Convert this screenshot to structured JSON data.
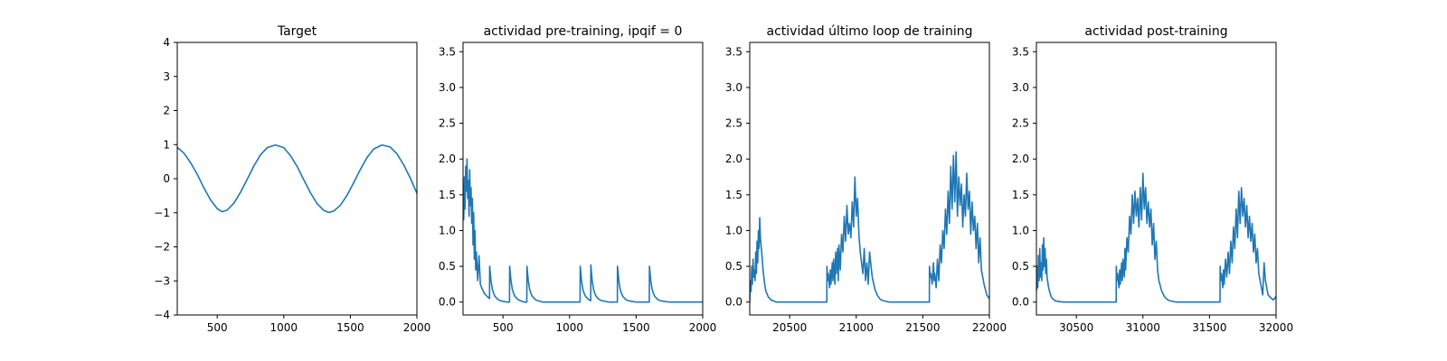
{
  "chart_data": [
    {
      "type": "line",
      "title": "Target",
      "xlim": [
        200,
        2000
      ],
      "ylim": [
        -4,
        4
      ],
      "xticks": [
        500,
        1000,
        1500,
        2000
      ],
      "yticks": [
        -4,
        -3,
        -2,
        -1,
        0,
        1,
        2,
        3,
        4
      ],
      "grid": false,
      "series": [
        {
          "color": "#1f77b4",
          "x": [
            200,
            250,
            300,
            350,
            400,
            450,
            500,
            537,
            575,
            625,
            675,
            725,
            775,
            825,
            875,
            937,
            1000,
            1050,
            1100,
            1150,
            1200,
            1250,
            1300,
            1337,
            1375,
            1425,
            1475,
            1525,
            1575,
            1625,
            1675,
            1737,
            1800,
            1850,
            1900,
            1950,
            2000
          ],
          "y": [
            0.92,
            0.75,
            0.47,
            0.13,
            -0.27,
            -0.62,
            -0.88,
            -0.97,
            -0.92,
            -0.72,
            -0.4,
            -0.02,
            0.37,
            0.7,
            0.91,
            0.99,
            0.91,
            0.68,
            0.36,
            -0.03,
            -0.41,
            -0.73,
            -0.93,
            -0.99,
            -0.95,
            -0.78,
            -0.49,
            -0.12,
            0.27,
            0.62,
            0.87,
            0.99,
            0.93,
            0.73,
            0.41,
            0.02,
            -0.43
          ]
        }
      ]
    },
    {
      "type": "line",
      "title": "actividad pre-training, ipqif = 0",
      "xlim": [
        200,
        2000
      ],
      "ylim": [
        -0.18,
        3.63
      ],
      "xticks": [
        500,
        1000,
        1500,
        2000
      ],
      "yticks": [
        0.0,
        0.5,
        1.0,
        1.5,
        2.0,
        2.5,
        3.0,
        3.5
      ],
      "grid": false,
      "series": [
        {
          "color": "#1f77b4",
          "x": [
            200,
            205,
            210,
            215,
            220,
            225,
            230,
            235,
            240,
            245,
            250,
            255,
            260,
            265,
            270,
            275,
            280,
            285,
            290,
            295,
            300,
            310,
            320,
            330,
            340,
            360,
            380,
            399,
            400,
            405,
            410,
            420,
            430,
            440,
            460,
            480,
            500,
            530,
            549,
            550,
            555,
            560,
            570,
            580,
            590,
            610,
            630,
            660,
            679,
            680,
            685,
            690,
            700,
            710,
            720,
            740,
            760,
            800,
            900,
            1000,
            1079,
            1080,
            1085,
            1090,
            1100,
            1110,
            1120,
            1140,
            1159,
            1160,
            1165,
            1170,
            1180,
            1190,
            1200,
            1220,
            1240,
            1300,
            1359,
            1360,
            1365,
            1370,
            1380,
            1390,
            1400,
            1420,
            1440,
            1500,
            1599,
            1600,
            1605,
            1610,
            1620,
            1630,
            1640,
            1660,
            1680,
            1750,
            1850,
            1950,
            2000
          ],
          "y": [
            1.4,
            1.15,
            1.75,
            1.3,
            1.9,
            1.55,
            2.0,
            1.45,
            1.7,
            1.2,
            1.85,
            1.35,
            1.6,
            1.1,
            1.45,
            0.8,
            1.25,
            0.6,
            1.0,
            0.45,
            0.7,
            0.3,
            0.65,
            0.25,
            0.2,
            0.12,
            0.08,
            0.05,
            0.5,
            0.4,
            0.3,
            0.18,
            0.12,
            0.08,
            0.04,
            0.02,
            0.01,
            0.0,
            0.0,
            0.5,
            0.4,
            0.3,
            0.18,
            0.12,
            0.08,
            0.04,
            0.02,
            0.0,
            0.0,
            0.5,
            0.4,
            0.3,
            0.18,
            0.12,
            0.08,
            0.04,
            0.02,
            0.0,
            0.0,
            0.0,
            0.0,
            0.5,
            0.4,
            0.3,
            0.18,
            0.12,
            0.08,
            0.04,
            0.02,
            0.52,
            0.4,
            0.3,
            0.18,
            0.12,
            0.08,
            0.04,
            0.02,
            0.0,
            0.0,
            0.5,
            0.4,
            0.3,
            0.18,
            0.12,
            0.08,
            0.04,
            0.02,
            0.0,
            0.0,
            0.5,
            0.4,
            0.3,
            0.18,
            0.12,
            0.08,
            0.04,
            0.02,
            0.0,
            0.0,
            0.0,
            0.0
          ]
        }
      ]
    },
    {
      "type": "line",
      "title": "actividad último loop de training",
      "xlim": [
        20200,
        22000
      ],
      "ylim": [
        -0.18,
        3.63
      ],
      "xticks": [
        20500,
        21000,
        21500,
        22000
      ],
      "yticks": [
        0.0,
        0.5,
        1.0,
        1.5,
        2.0,
        2.5,
        3.0,
        3.5
      ],
      "grid": false,
      "series": [
        {
          "color": "#1f77b4",
          "x": [
            20200,
            20205,
            20210,
            20215,
            20220,
            20225,
            20230,
            20235,
            20240,
            20245,
            20250,
            20255,
            20260,
            20265,
            20270,
            20275,
            20280,
            20290,
            20300,
            20310,
            20320,
            20340,
            20360,
            20400,
            20500,
            20600,
            20700,
            20779,
            20780,
            20785,
            20790,
            20800,
            20805,
            20810,
            20820,
            20825,
            20830,
            20840,
            20845,
            20850,
            20860,
            20865,
            20870,
            20880,
            20890,
            20900,
            20910,
            20920,
            20930,
            20940,
            20950,
            20960,
            20970,
            20980,
            20990,
            21000,
            21010,
            21020,
            21030,
            21040,
            21050,
            21060,
            21070,
            21080,
            21090,
            21100,
            21120,
            21140,
            21160,
            21180,
            21200,
            21250,
            21300,
            21400,
            21500,
            21549,
            21550,
            21555,
            21560,
            21570,
            21580,
            21585,
            21590,
            21600,
            21610,
            21620,
            21630,
            21640,
            21650,
            21660,
            21670,
            21680,
            21690,
            21700,
            21710,
            21720,
            21730,
            21740,
            21750,
            21760,
            21770,
            21780,
            21790,
            21800,
            21810,
            21820,
            21830,
            21840,
            21850,
            21860,
            21870,
            21880,
            21890,
            21900,
            21910,
            21920,
            21930,
            21940,
            21960,
            21980,
            22000
          ],
          "y": [
            0.0,
            0.3,
            0.15,
            0.5,
            0.25,
            0.6,
            0.35,
            0.45,
            0.3,
            0.7,
            0.4,
            0.85,
            0.55,
            1.0,
            0.75,
            1.18,
            0.9,
            0.7,
            0.45,
            0.28,
            0.16,
            0.07,
            0.03,
            0.0,
            0.0,
            0.0,
            0.0,
            0.0,
            0.5,
            0.3,
            0.4,
            0.2,
            0.45,
            0.25,
            0.55,
            0.3,
            0.6,
            0.25,
            0.7,
            0.4,
            0.75,
            0.3,
            0.8,
            0.45,
            0.95,
            0.7,
            1.2,
            0.85,
            1.35,
            0.95,
            1.1,
            0.9,
            1.4,
            1.05,
            1.75,
            1.2,
            1.45,
            0.95,
            0.7,
            0.55,
            0.4,
            0.75,
            0.3,
            0.55,
            0.25,
            0.7,
            0.35,
            0.18,
            0.09,
            0.04,
            0.02,
            0.0,
            0.0,
            0.0,
            0.0,
            0.0,
            0.5,
            0.35,
            0.4,
            0.25,
            0.55,
            0.3,
            0.4,
            0.2,
            0.6,
            0.3,
            0.8,
            0.55,
            1.0,
            0.75,
            1.3,
            0.95,
            1.55,
            1.1,
            1.9,
            1.3,
            2.05,
            1.4,
            2.1,
            1.2,
            1.75,
            1.35,
            1.65,
            1.05,
            1.5,
            1.2,
            1.8,
            1.3,
            1.55,
            0.95,
            1.4,
            1.0,
            1.2,
            0.75,
            1.1,
            0.55,
            0.9,
            0.45,
            0.25,
            0.1,
            0.05
          ]
        }
      ]
    },
    {
      "type": "line",
      "title": "actividad post-training",
      "xlim": [
        30200,
        32000
      ],
      "ylim": [
        -0.18,
        3.63
      ],
      "xticks": [
        30500,
        31000,
        31500,
        32000
      ],
      "yticks": [
        0.0,
        0.5,
        1.0,
        1.5,
        2.0,
        2.5,
        3.0,
        3.5
      ],
      "grid": false,
      "series": [
        {
          "color": "#1f77b4",
          "x": [
            30200,
            30205,
            30210,
            30215,
            30220,
            30225,
            30230,
            30235,
            30240,
            30245,
            30250,
            30255,
            30260,
            30265,
            30270,
            30275,
            30280,
            30290,
            30300,
            30310,
            30320,
            30340,
            30360,
            30400,
            30500,
            30600,
            30700,
            30799,
            30800,
            30805,
            30810,
            30820,
            30825,
            30830,
            30840,
            30845,
            30850,
            30860,
            30865,
            30870,
            30880,
            30890,
            30900,
            30910,
            30920,
            30930,
            30940,
            30950,
            30960,
            30970,
            30980,
            30990,
            31000,
            31010,
            31020,
            31030,
            31040,
            31050,
            31060,
            31070,
            31080,
            31090,
            31100,
            31110,
            31120,
            31140,
            31160,
            31180,
            31200,
            31250,
            31300,
            31400,
            31500,
            31579,
            31580,
            31585,
            31590,
            31600,
            31605,
            31610,
            31620,
            31630,
            31640,
            31650,
            31660,
            31670,
            31680,
            31690,
            31700,
            31710,
            31720,
            31730,
            31740,
            31750,
            31760,
            31770,
            31780,
            31790,
            31800,
            31810,
            31820,
            31830,
            31840,
            31850,
            31860,
            31870,
            31880,
            31890,
            31900,
            31910,
            31920,
            31930,
            31940,
            31960,
            31980,
            32000
          ],
          "y": [
            0.15,
            0.5,
            0.2,
            0.65,
            0.3,
            0.75,
            0.35,
            0.55,
            0.3,
            0.8,
            0.45,
            0.9,
            0.5,
            0.75,
            0.4,
            0.6,
            0.35,
            0.22,
            0.14,
            0.08,
            0.05,
            0.02,
            0.01,
            0.0,
            0.0,
            0.0,
            0.0,
            0.0,
            0.5,
            0.3,
            0.4,
            0.2,
            0.45,
            0.25,
            0.55,
            0.3,
            0.6,
            0.35,
            0.75,
            0.45,
            0.9,
            0.7,
            1.2,
            0.95,
            1.5,
            1.1,
            1.55,
            1.2,
            1.45,
            1.05,
            1.6,
            1.15,
            1.8,
            1.3,
            1.6,
            1.1,
            1.4,
            1.05,
            1.3,
            0.8,
            1.1,
            0.6,
            0.85,
            0.45,
            0.3,
            0.16,
            0.08,
            0.04,
            0.02,
            0.0,
            0.0,
            0.0,
            0.0,
            0.0,
            0.5,
            0.3,
            0.4,
            0.2,
            0.45,
            0.25,
            0.6,
            0.35,
            0.7,
            0.4,
            0.85,
            0.55,
            1.05,
            0.75,
            1.3,
            0.9,
            1.55,
            1.1,
            1.6,
            1.2,
            1.45,
            1.05,
            1.35,
            0.9,
            1.2,
            0.85,
            1.1,
            0.7,
            0.95,
            0.55,
            0.75,
            0.4,
            0.3,
            0.2,
            0.1,
            0.55,
            0.3,
            0.2,
            0.1,
            0.06,
            0.03,
            0.08
          ]
        }
      ]
    }
  ]
}
